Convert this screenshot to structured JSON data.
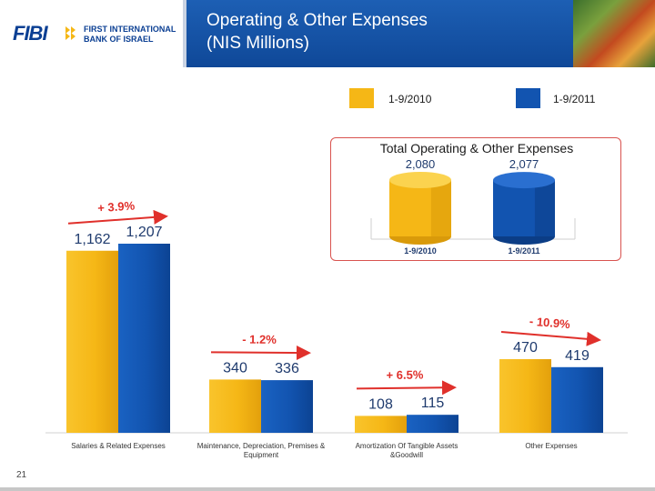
{
  "logo": {
    "brand": "FIBI",
    "line1": "FIRST INTERNATIONAL",
    "line2": "BANK OF ISRAEL"
  },
  "header": {
    "title_line1": "Operating & Other Expenses",
    "title_line2": "(NIS Millions)"
  },
  "legend": [
    {
      "label": "1-9/2010",
      "color": "#f5b716"
    },
    {
      "label": "1-9/2011",
      "color": "#1254b0"
    }
  ],
  "colors": {
    "series_2010": "#f5b716",
    "series_2011": "#1254b0",
    "arrow": "#e0302b",
    "header": "#1554a8"
  },
  "chart_data": [
    {
      "type": "bar",
      "categories": [
        "Salaries & Related Expenses",
        "Maintenance, Depreciation, Premises & Equipment",
        "Amortization Of Tangible Assets &Goodwill",
        "Other Expenses"
      ],
      "series": [
        {
          "name": "1-9/2010",
          "values": [
            1162,
            340,
            108,
            470
          ]
        },
        {
          "name": "1-9/2011",
          "values": [
            1207,
            336,
            115,
            419
          ]
        }
      ],
      "value_labels": [
        [
          "1,162",
          "1,207"
        ],
        [
          "340",
          "336"
        ],
        [
          "108",
          "115"
        ],
        [
          "470",
          "419"
        ]
      ],
      "annotations": [
        "+ 3.9%",
        "- 1.2%",
        "+ 6.5%",
        "- 10.9%"
      ],
      "ylim": [
        0,
        1300
      ],
      "grid": false,
      "legend_placement": "top"
    },
    {
      "type": "bar",
      "title": "Total Operating & Other Expenses",
      "categories": [
        "1-9/2010",
        "1-9/2011"
      ],
      "values": [
        2080,
        2077
      ],
      "value_labels": [
        "2,080",
        "2,077"
      ]
    }
  ],
  "footer": {
    "page_number": "21"
  }
}
